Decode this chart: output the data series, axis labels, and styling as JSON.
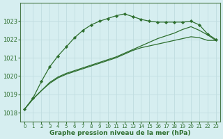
{
  "title": "Graphe pression niveau de la mer (hPa)",
  "background_color": "#d6eef0",
  "grid_color": "#c0dde0",
  "line_color": "#2d6e2d",
  "marker_color": "#2d6e2d",
  "xlim": [
    -0.5,
    23.5
  ],
  "ylim": [
    1017.5,
    1024.0
  ],
  "yticks": [
    1018,
    1019,
    1020,
    1021,
    1022,
    1023
  ],
  "xticks": [
    0,
    1,
    2,
    3,
    4,
    5,
    6,
    7,
    8,
    9,
    10,
    11,
    12,
    13,
    14,
    15,
    16,
    17,
    18,
    19,
    20,
    21,
    22,
    23
  ],
  "series": [
    {
      "y": [
        1018.2,
        1018.8,
        1019.7,
        1020.5,
        1021.1,
        1021.6,
        1022.1,
        1022.5,
        1022.8,
        1023.0,
        1023.15,
        1023.3,
        1023.4,
        1023.25,
        1023.1,
        1023.0,
        1022.95,
        1022.95,
        1022.95,
        1022.95,
        1023.0,
        1022.8,
        1022.3,
        1022.0
      ],
      "has_markers": true
    },
    {
      "y": [
        1018.2,
        1018.75,
        1019.2,
        1019.6,
        1019.9,
        1020.1,
        1020.25,
        1020.4,
        1020.55,
        1020.7,
        1020.85,
        1021.0,
        1021.2,
        1021.4,
        1021.55,
        1021.65,
        1021.75,
        1021.85,
        1021.95,
        1022.05,
        1022.15,
        1022.1,
        1021.95,
        1021.95
      ],
      "has_markers": false
    },
    {
      "y": [
        1018.2,
        1018.75,
        1019.2,
        1019.65,
        1019.95,
        1020.15,
        1020.3,
        1020.45,
        1020.6,
        1020.75,
        1020.9,
        1021.05,
        1021.25,
        1021.45,
        1021.65,
        1021.85,
        1022.05,
        1022.2,
        1022.35,
        1022.55,
        1022.7,
        1022.5,
        1022.25,
        1021.95
      ],
      "has_markers": false
    }
  ]
}
